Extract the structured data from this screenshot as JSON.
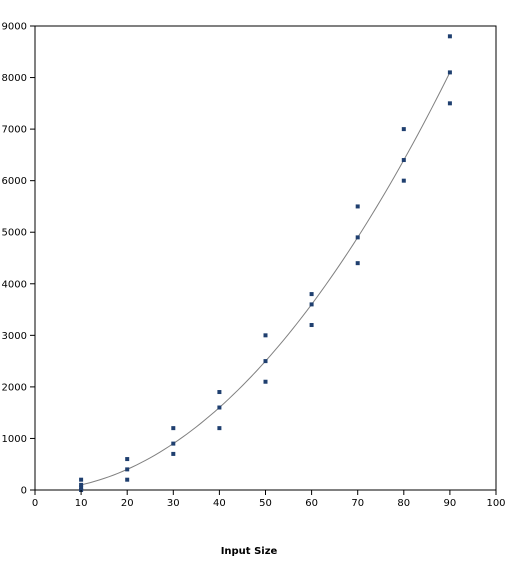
{
  "chart_data": {
    "type": "scatter",
    "title": "",
    "xlabel": "Input Size",
    "ylabel": "",
    "xlim": [
      0,
      100
    ],
    "ylim": [
      0,
      9000
    ],
    "x_ticks": [
      0,
      10,
      20,
      30,
      40,
      50,
      60,
      70,
      80,
      90,
      100
    ],
    "y_ticks": [
      0,
      1000,
      2000,
      3000,
      4000,
      5000,
      6000,
      7000,
      8000,
      9000
    ],
    "grid": false,
    "legend": "none",
    "points": [
      {
        "x": 10,
        "y": 200
      },
      {
        "x": 10,
        "y": 100
      },
      {
        "x": 10,
        "y": 50
      },
      {
        "x": 10,
        "y": 0
      },
      {
        "x": 20,
        "y": 600
      },
      {
        "x": 20,
        "y": 400
      },
      {
        "x": 20,
        "y": 200
      },
      {
        "x": 30,
        "y": 1200
      },
      {
        "x": 30,
        "y": 900
      },
      {
        "x": 30,
        "y": 700
      },
      {
        "x": 40,
        "y": 1900
      },
      {
        "x": 40,
        "y": 1600
      },
      {
        "x": 40,
        "y": 1200
      },
      {
        "x": 50,
        "y": 3000
      },
      {
        "x": 50,
        "y": 2500
      },
      {
        "x": 50,
        "y": 2100
      },
      {
        "x": 60,
        "y": 3800
      },
      {
        "x": 60,
        "y": 3600
      },
      {
        "x": 60,
        "y": 3200
      },
      {
        "x": 70,
        "y": 5500
      },
      {
        "x": 70,
        "y": 4900
      },
      {
        "x": 70,
        "y": 4400
      },
      {
        "x": 80,
        "y": 7000
      },
      {
        "x": 80,
        "y": 6400
      },
      {
        "x": 80,
        "y": 6000
      },
      {
        "x": 90,
        "y": 8800
      },
      {
        "x": 90,
        "y": 8100
      },
      {
        "x": 90,
        "y": 7500
      }
    ],
    "trendline": {
      "type": "quadratic",
      "coefficients": {
        "a": 1.0,
        "b": 0.0,
        "c": 0.0
      },
      "x_range": [
        10,
        90
      ]
    },
    "colors": {
      "marker": "#1F3F6F",
      "trendline": "#808080",
      "axis": "#000000"
    }
  }
}
